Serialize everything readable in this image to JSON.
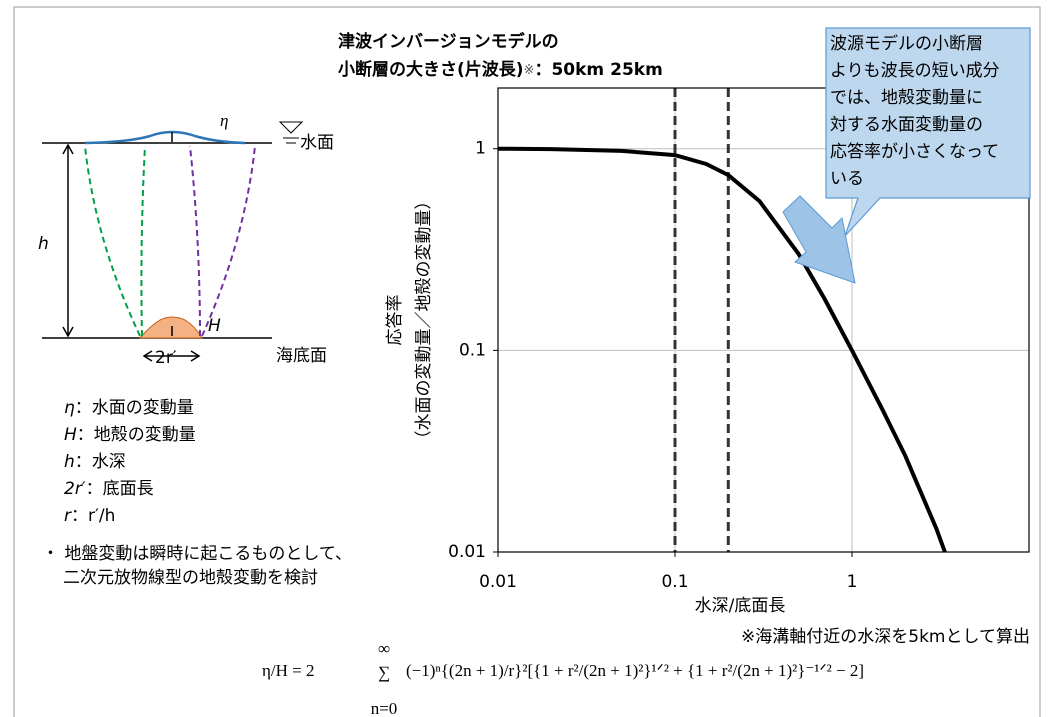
{
  "chart_data": {
    "type": "line",
    "title": [
      "津波インバージョンモデルの",
      "小断層の大きさ(片波長)"
    ],
    "title_mark": "※",
    "title_separator": "：",
    "reference_lines": [
      {
        "value": 0.1,
        "label": "50km"
      },
      {
        "value": 0.2,
        "label": "25km"
      }
    ],
    "x": [
      0.01,
      0.02,
      0.05,
      0.1,
      0.15,
      0.2,
      0.3,
      0.5,
      0.7,
      1,
      1.5,
      2,
      3,
      3.35
    ],
    "series": [
      {
        "color": "#000000",
        "values": [
          1,
          0.995,
          0.975,
          0.93,
          0.84,
          0.74,
          0.55,
          0.3,
          0.18,
          0.1,
          0.05,
          0.03,
          0.013,
          0.01
        ]
      }
    ],
    "xlim": [
      0.01,
      10
    ],
    "ylim": [
      0.01,
      2
    ],
    "xticks": [
      0.01,
      0.1,
      1
    ],
    "yticks": [
      0.01,
      0.1,
      1
    ],
    "xscale": "log",
    "yscale": "log",
    "grid": true,
    "xlabel": "水深/底面長",
    "ylabel": [
      "応答率",
      "（水面の変動量／地殻の変動量）"
    ],
    "note": "※海溝軸付近の水深を5kmとして算出",
    "callout": [
      "波源モデルの小断層",
      "よりも波長の短い成分",
      "では、地殻変動量に",
      "対する水面変動量の",
      "応答率が小さくなって",
      "いる"
    ]
  },
  "diagram": {
    "eta": "η",
    "surface": "水面",
    "depth": "h",
    "uplift": "H",
    "width": "2r′",
    "seabed": "海底面"
  },
  "legend": [
    {
      "symbol": "η",
      "text": "：水面の変動量"
    },
    {
      "symbol": "H",
      "text": "：地殻の変動量"
    },
    {
      "symbol": "h",
      "text": "：水深"
    },
    {
      "symbol": "2r′",
      "text": "：底面長"
    },
    {
      "symbol": "r",
      "text": "：r′/h"
    }
  ],
  "bullet": [
    "・ 地盤変動は瞬時に起こるものとして、",
    "二次元放物線型の地殻変動を検討"
  ],
  "formula": {
    "lhs": "η/H = 2",
    "sum": "∑",
    "upper": "∞",
    "lower": "n=0",
    "body": "(−1)ⁿ{(2n + 1)/r}²[{1 + r²/(2n + 1)²}¹ᐟ² + {1 + r²/(2n + 1)²}⁻¹ᐟ² − 2]"
  }
}
